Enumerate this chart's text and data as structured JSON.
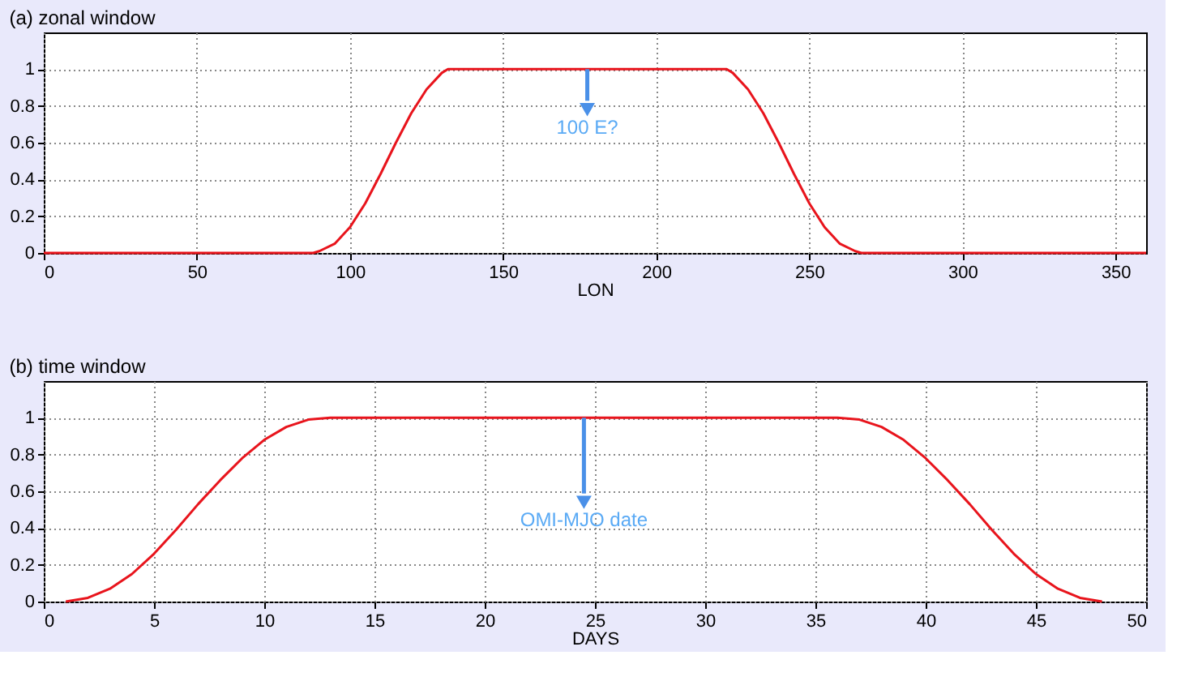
{
  "chart_data": [
    {
      "type": "line",
      "title": "(a) zonal window",
      "xlabel": "LON",
      "x": [
        0,
        50,
        88,
        90,
        95,
        100,
        105,
        110,
        115,
        120,
        125,
        130,
        132,
        175,
        223,
        225,
        230,
        235,
        240,
        245,
        250,
        255,
        260,
        265,
        267,
        300,
        360
      ],
      "series": [
        {
          "color": "#e8141c",
          "values": [
            0,
            0,
            0,
            0.01,
            0.05,
            0.14,
            0.27,
            0.43,
            0.6,
            0.76,
            0.89,
            0.98,
            1,
            1,
            1,
            0.98,
            0.89,
            0.76,
            0.6,
            0.43,
            0.27,
            0.14,
            0.05,
            0.01,
            0,
            0,
            0
          ]
        }
      ],
      "xlim": [
        0,
        360
      ],
      "xticks": [
        0,
        50,
        100,
        150,
        200,
        250,
        300,
        350
      ],
      "ylim": [
        0,
        1.2
      ],
      "yticks": [
        0,
        0.2,
        0.4,
        0.6,
        0.8,
        1
      ],
      "grid": true,
      "annotations": [
        "100 E?"
      ]
    },
    {
      "type": "line",
      "title": "(b) time window",
      "xlabel": "DAYS",
      "x": [
        1,
        2,
        3,
        4,
        5,
        6,
        7,
        8,
        9,
        10,
        11,
        12,
        13,
        20,
        30,
        36,
        37,
        38,
        39,
        40,
        41,
        42,
        43,
        44,
        45,
        46,
        47,
        48
      ],
      "series": [
        {
          "color": "#e8141c",
          "values": [
            0,
            0.02,
            0.07,
            0.15,
            0.26,
            0.39,
            0.53,
            0.66,
            0.78,
            0.88,
            0.95,
            0.99,
            1,
            1,
            1,
            1,
            0.99,
            0.95,
            0.88,
            0.78,
            0.66,
            0.53,
            0.39,
            0.26,
            0.15,
            0.07,
            0.02,
            0
          ]
        }
      ],
      "xlim": [
        0,
        50
      ],
      "xticks": [
        0,
        5,
        10,
        15,
        20,
        25,
        30,
        35,
        40,
        45,
        50
      ],
      "ylim": [
        0,
        1.2
      ],
      "yticks": [
        0,
        0.2,
        0.4,
        0.6,
        0.8,
        1
      ],
      "grid": true,
      "annotations": [
        "OMI-MJO date"
      ]
    }
  ]
}
